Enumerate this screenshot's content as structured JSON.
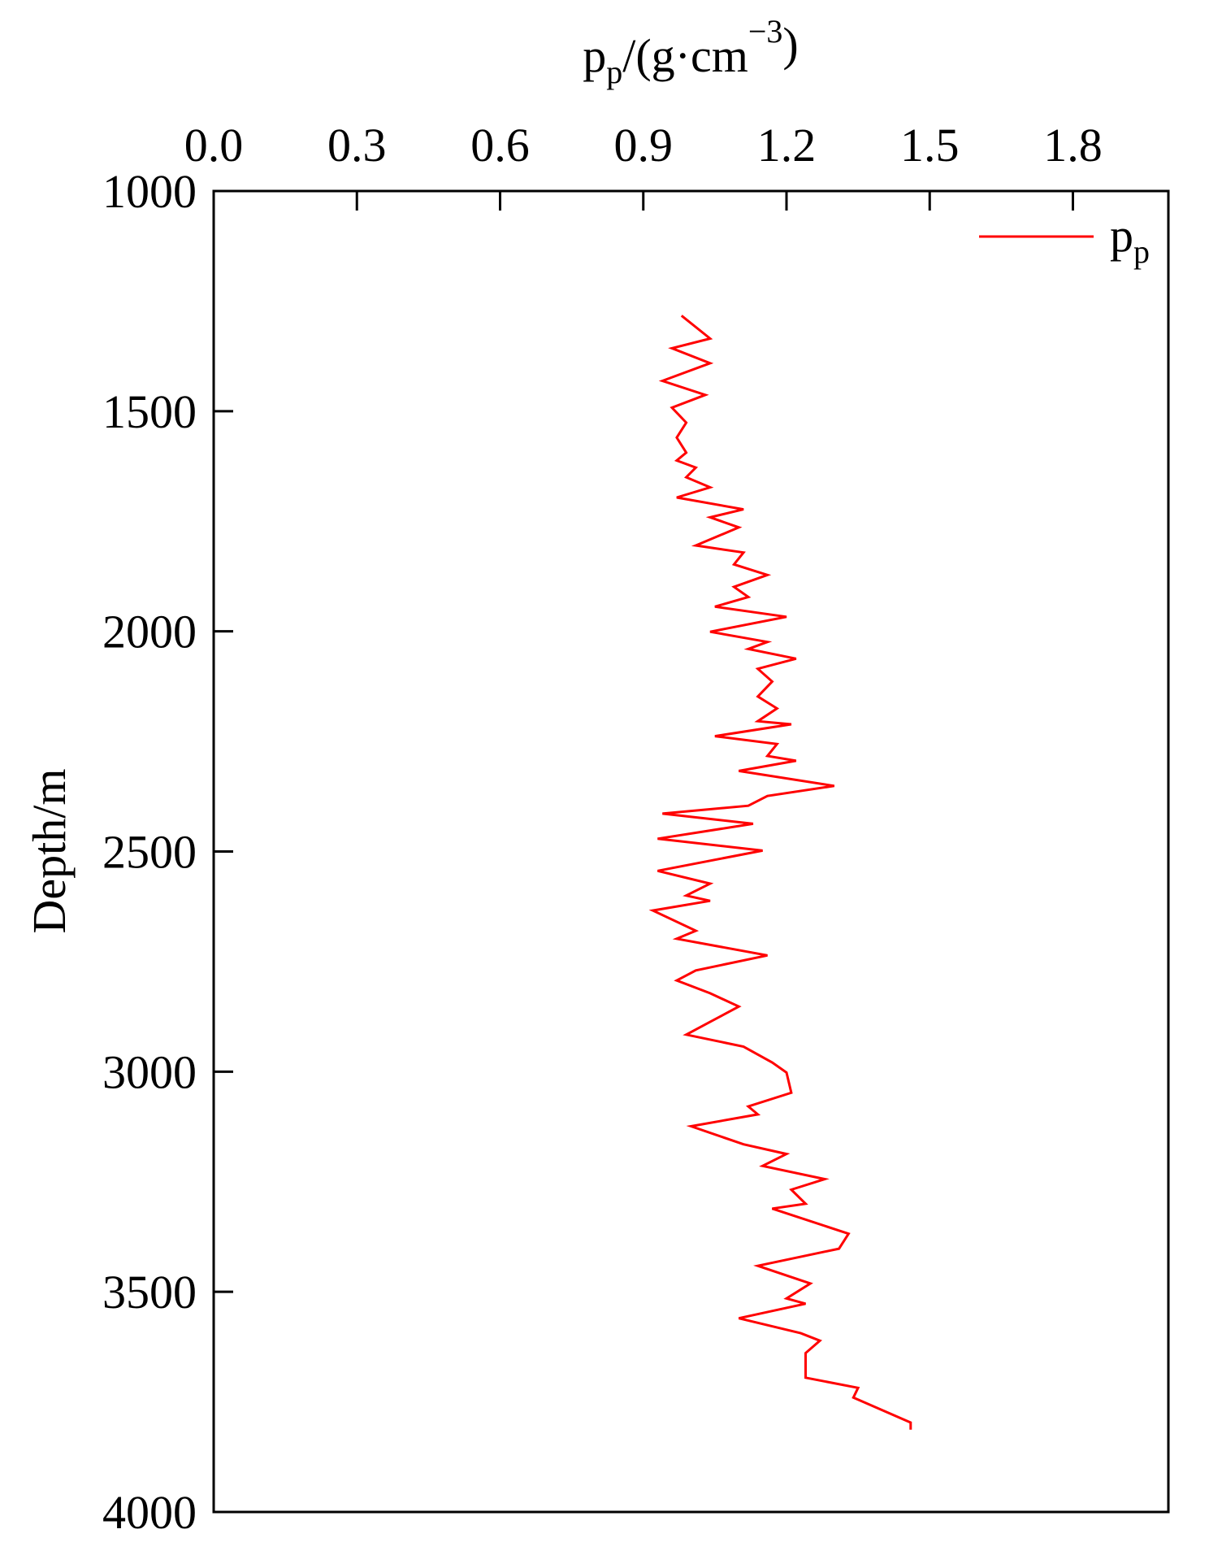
{
  "chart_data": {
    "type": "line",
    "x_label": [
      "p",
      "p",
      "/(g·cm",
      "−3",
      ")"
    ],
    "y_label": "Depth/m",
    "xlim": [
      0,
      2.0
    ],
    "xticks": [
      {
        "value": 0,
        "label": "0.0"
      },
      0.3,
      0.6,
      0.9,
      1.2,
      1.5,
      1.8
    ],
    "ylim": [
      4000,
      1000
    ],
    "yticks": [
      1000,
      1500,
      2000,
      2500,
      3000,
      3500,
      4000
    ],
    "legend": "upper right",
    "y": [
      1283,
      1335,
      1357,
      1391,
      1431,
      1463,
      1492,
      1526,
      1560,
      1594,
      1612,
      1628,
      1650,
      1673,
      1696,
      1723,
      1741,
      1764,
      1805,
      1821,
      1848,
      1872,
      1899,
      1922,
      1944,
      1967,
      2001,
      2024,
      2040,
      2062,
      2085,
      2114,
      2148,
      2175,
      2204,
      2211,
      2238,
      2256,
      2283,
      2294,
      2317,
      2351,
      2374,
      2396,
      2414,
      2437,
      2471,
      2498,
      2544,
      2573,
      2600,
      2612,
      2634,
      2680,
      2698,
      2736,
      2770,
      2793,
      2822,
      2852,
      2887,
      2916,
      2943,
      2979,
      3002,
      3048,
      3079,
      3097,
      3124,
      3165,
      3187,
      3214,
      3244,
      3268,
      3300,
      3311,
      3368,
      3402,
      3441,
      3481,
      3515,
      3527,
      3560,
      3594,
      3611,
      3639,
      3695,
      3718,
      3740,
      3797,
      3813
    ],
    "series": [
      {
        "name": [
          "p",
          "p"
        ],
        "color": "#ff0000",
        "values": [
          0.98,
          1.04,
          0.96,
          1.04,
          0.94,
          1.03,
          0.96,
          0.99,
          0.97,
          0.99,
          0.97,
          1.01,
          0.99,
          1.04,
          0.97,
          1.11,
          1.04,
          1.1,
          1.01,
          1.11,
          1.09,
          1.16,
          1.09,
          1.12,
          1.05,
          1.2,
          1.04,
          1.16,
          1.12,
          1.22,
          1.14,
          1.17,
          1.14,
          1.18,
          1.14,
          1.21,
          1.05,
          1.18,
          1.16,
          1.22,
          1.1,
          1.3,
          1.16,
          1.12,
          0.94,
          1.13,
          0.93,
          1.15,
          0.93,
          1.04,
          0.99,
          1.04,
          0.92,
          1.01,
          0.97,
          1.16,
          1.01,
          0.97,
          1.04,
          1.1,
          1.04,
          0.99,
          1.11,
          1.17,
          1.2,
          1.21,
          1.12,
          1.14,
          1.0,
          1.11,
          1.2,
          1.15,
          1.28,
          1.21,
          1.24,
          1.17,
          1.33,
          1.31,
          1.14,
          1.25,
          1.2,
          1.24,
          1.1,
          1.23,
          1.27,
          1.24,
          1.24,
          1.35,
          1.34,
          1.46,
          1.46
        ]
      }
    ]
  }
}
